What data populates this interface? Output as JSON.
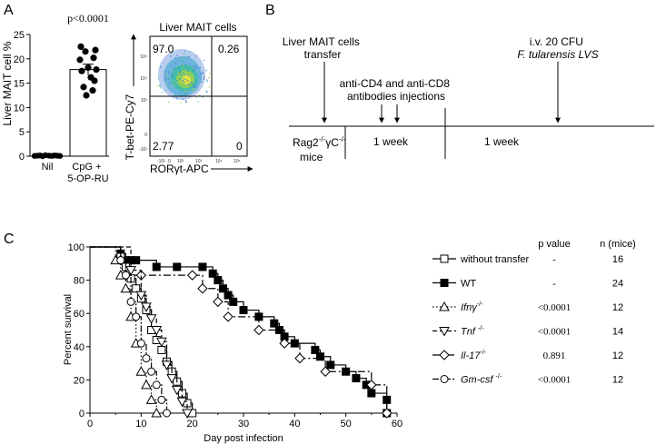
{
  "panel_labels": {
    "a": "A",
    "b": "B",
    "c": "C"
  },
  "panelA": {
    "chart_data": {
      "type": "scatter",
      "ylabel": "Liver MAIT cell %",
      "ylim": [
        0,
        25
      ],
      "yticks": [
        "0",
        "5",
        "10",
        "15",
        "20",
        "25"
      ],
      "categories": [
        "Nil",
        "CpG +\n5-OP-RU"
      ],
      "category_lines": [
        [
          "Nil"
        ],
        [
          "CpG +",
          "5-OP-RU"
        ]
      ],
      "pvalue": "p<0.0001",
      "bar_means": [
        0.1,
        17.8
      ],
      "error": [
        0.0,
        1.1
      ],
      "points": [
        [
          0.05,
          0.1,
          0.15,
          0.0,
          0.2,
          0.1,
          0.05,
          0.15,
          0.1,
          0.05
        ],
        [
          22.5,
          21.8,
          21.5,
          20.2,
          19.8,
          18.2,
          17.8,
          17.5,
          16.2,
          15.5,
          14.2,
          13.5,
          12.5
        ]
      ]
    },
    "flow": {
      "title": "Liver MAIT cells",
      "ylabel": "T-bet-PE-Cy7",
      "xlabel": "RORγt-APC",
      "quadrants": {
        "ul": "97.0",
        "ur": "0.26",
        "ll": "2.77",
        "lr": "0"
      },
      "x_ticks": [
        "-10²",
        "0",
        "10²",
        "10³",
        "10⁴",
        "10⁵"
      ],
      "y_ticks": [
        "10⁵",
        "10⁴",
        "10³",
        "0",
        "-10³"
      ]
    }
  },
  "panelB": {
    "rag_line1": "Rag2",
    "rag_sup": "-/-",
    "rag_gamma": "γC",
    "rag_line2": "mice",
    "transfer_label": [
      "Liver MAIT cells",
      "transfer"
    ],
    "antibody_label": [
      "anti-CD4 and anti-CD8",
      "antibodies injections"
    ],
    "infection_label": [
      "i.v. 20 CFU",
      "F. tularensis LVS"
    ],
    "week1": "1 week",
    "week2": "1 week"
  },
  "panelC": {
    "chart_data": {
      "type": "line",
      "xlabel": "Day post infection",
      "ylabel": "Percent survival",
      "xlim": [
        0,
        60
      ],
      "ylim": [
        0,
        100
      ],
      "xticks": [
        0,
        10,
        20,
        30,
        40,
        50,
        60
      ],
      "yticks": [
        0,
        20,
        40,
        60,
        80,
        100
      ],
      "series": [
        {
          "key": "wt",
          "marker": "square-filled",
          "dash": "",
          "steps": [
            [
              0,
              100
            ],
            [
              6,
              96
            ],
            [
              7,
              92
            ],
            [
              8,
              92
            ],
            [
              9,
              92
            ],
            [
              13,
              88
            ],
            [
              17,
              88
            ],
            [
              22,
              88
            ],
            [
              24,
              84
            ],
            [
              25,
              80
            ],
            [
              26,
              75
            ],
            [
              27,
              71
            ],
            [
              28,
              67
            ],
            [
              30,
              62
            ],
            [
              33,
              58
            ],
            [
              36,
              54
            ],
            [
              37,
              50
            ],
            [
              38,
              46
            ],
            [
              40,
              42
            ],
            [
              44,
              38
            ],
            [
              45,
              34
            ],
            [
              47,
              29
            ],
            [
              50,
              25
            ],
            [
              52,
              21
            ],
            [
              54,
              17
            ],
            [
              55,
              12
            ],
            [
              58,
              8
            ],
            [
              58,
              0
            ]
          ]
        },
        {
          "key": "wo",
          "marker": "square-open",
          "dash": "",
          "steps": [
            [
              0,
              100
            ],
            [
              6,
              94
            ],
            [
              7,
              88
            ],
            [
              8,
              81
            ],
            [
              9,
              75
            ],
            [
              10,
              69
            ],
            [
              11,
              62
            ],
            [
              12,
              50
            ],
            [
              13,
              44
            ],
            [
              14,
              38
            ],
            [
              15,
              31
            ],
            [
              16,
              25
            ],
            [
              17,
              19
            ],
            [
              18,
              12
            ],
            [
              19,
              6
            ],
            [
              20,
              0
            ]
          ]
        },
        {
          "key": "il17",
          "marker": "diamond-open",
          "dash": "8,3,2,3",
          "steps": [
            [
              0,
              100
            ],
            [
              6,
              92
            ],
            [
              7,
              83
            ],
            [
              10,
              83
            ],
            [
              20,
              83
            ],
            [
              22,
              75
            ],
            [
              25,
              67
            ],
            [
              27,
              58
            ],
            [
              33,
              50
            ],
            [
              38,
              42
            ],
            [
              41,
              33
            ],
            [
              46,
              25
            ],
            [
              55,
              17
            ],
            [
              58,
              0
            ]
          ]
        },
        {
          "key": "tnf",
          "marker": "tri-down-open",
          "dash": "5,3",
          "steps": [
            [
              0,
              100
            ],
            [
              8,
              86
            ],
            [
              10,
              71
            ],
            [
              11,
              64
            ],
            [
              12,
              57
            ],
            [
              13,
              50
            ],
            [
              14,
              43
            ],
            [
              15,
              29
            ],
            [
              16,
              21
            ],
            [
              17,
              14
            ],
            [
              18,
              7
            ],
            [
              19,
              0
            ]
          ]
        },
        {
          "key": "ifng",
          "marker": "tri-up-open",
          "dash": "1.5,2.5",
          "steps": [
            [
              0,
              100
            ],
            [
              5,
              92
            ],
            [
              6,
              83
            ],
            [
              7,
              75
            ],
            [
              8,
              58
            ],
            [
              9,
              42
            ],
            [
              10,
              25
            ],
            [
              11,
              17
            ],
            [
              12,
              8
            ],
            [
              13,
              0
            ]
          ]
        },
        {
          "key": "gmcsf",
          "marker": "circle-open",
          "dash": "7,2,2,2",
          "steps": [
            [
              0,
              100
            ],
            [
              6,
              92
            ],
            [
              7,
              83
            ],
            [
              8,
              67
            ],
            [
              9,
              58
            ],
            [
              10,
              42
            ],
            [
              11,
              33
            ],
            [
              12,
              25
            ],
            [
              13,
              17
            ],
            [
              14,
              8
            ],
            [
              15,
              0
            ]
          ]
        }
      ]
    },
    "legend_headers": {
      "p": "p value",
      "n": "n (mice)"
    },
    "legend": [
      {
        "key": "wo",
        "label": "without transfer",
        "p": "-",
        "n": "16"
      },
      {
        "key": "wt",
        "label": "WT",
        "p": "-",
        "n": "24"
      },
      {
        "key": "ifng",
        "label": "Ifnγ",
        "sup": "-/-",
        "p": "<0.0001",
        "n": "12"
      },
      {
        "key": "tnf",
        "label": "Tnf ",
        "sup": "-/-",
        "p": "<0.0001",
        "n": "14"
      },
      {
        "key": "il17",
        "label": "Il-17",
        "sup": "-/-",
        "p": "0.891",
        "n": "12"
      },
      {
        "key": "gmcsf",
        "label": "Gm-csf ",
        "sup": "-/-",
        "p": "<0.0001",
        "n": "12"
      }
    ]
  }
}
